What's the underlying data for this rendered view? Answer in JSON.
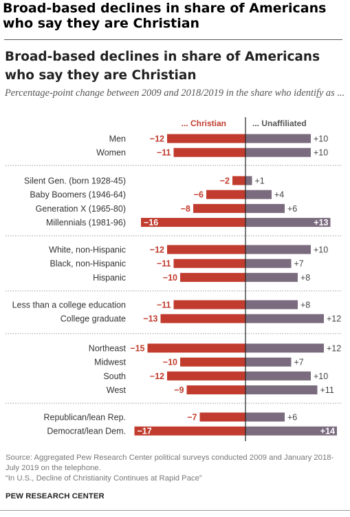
{
  "page_title": "Broad-based declines in share of Americans who say they are Christian",
  "chart_data": {
    "type": "bar",
    "title": "Broad-based declines in share of Americans who say they are Christian",
    "subtitle": "Percentage-point change between 2009 and 2018/2019 in the share who identify as ...",
    "series": [
      {
        "name": "... Christian",
        "color": "#c13c2e"
      },
      {
        "name": "... Unaffiliated",
        "color": "#7a6b7e"
      }
    ],
    "groups": [
      {
        "rows": [
          {
            "label": "Men",
            "christian": -12,
            "unaffiliated": 10
          },
          {
            "label": "Women",
            "christian": -11,
            "unaffiliated": 10
          }
        ]
      },
      {
        "rows": [
          {
            "label": "Silent Gen. (born 1928-45)",
            "christian": -2,
            "unaffiliated": 1
          },
          {
            "label": "Baby Boomers (1946-64)",
            "christian": -6,
            "unaffiliated": 4
          },
          {
            "label": "Generation X (1965-80)",
            "christian": -8,
            "unaffiliated": 6
          },
          {
            "label": "Millennials (1981-96)",
            "christian": -16,
            "unaffiliated": 13
          }
        ]
      },
      {
        "rows": [
          {
            "label": "White, non-Hispanic",
            "christian": -12,
            "unaffiliated": 10
          },
          {
            "label": "Black, non-Hispanic",
            "christian": -11,
            "unaffiliated": 7
          },
          {
            "label": "Hispanic",
            "christian": -10,
            "unaffiliated": 8
          }
        ]
      },
      {
        "rows": [
          {
            "label": "Less than a college education",
            "christian": -11,
            "unaffiliated": 8
          },
          {
            "label": "College graduate",
            "christian": -13,
            "unaffiliated": 12
          }
        ]
      },
      {
        "rows": [
          {
            "label": "Northeast",
            "christian": -15,
            "unaffiliated": 12
          },
          {
            "label": "Midwest",
            "christian": -10,
            "unaffiliated": 7
          },
          {
            "label": "South",
            "christian": -12,
            "unaffiliated": 10
          },
          {
            "label": "West",
            "christian": -9,
            "unaffiliated": 11
          }
        ]
      },
      {
        "rows": [
          {
            "label": "Republican/lean Rep.",
            "christian": -7,
            "unaffiliated": 6
          },
          {
            "label": "Democrat/lean Dem.",
            "christian": -17,
            "unaffiliated": 14
          }
        ]
      }
    ]
  },
  "footer": {
    "source": "Source: Aggregated Pew Research Center political surveys conducted 2009 and January 2018-July 2019 on the telephone.",
    "report": "“In U.S., Decline of Christianity Continues at Rapid Pace”",
    "org": "PEW RESEARCH CENTER"
  }
}
